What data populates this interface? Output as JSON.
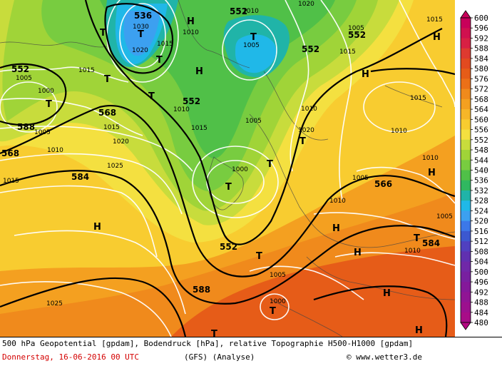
{
  "caption": {
    "line1": "500 hPa Geopotential [gpdam], Bodendruck [hPa], relative Topographie H500-H1000 [gpdam]",
    "date": "Donnerstag, 16-06-2016  00 UTC",
    "model": "(GFS)  (Analyse)",
    "credit": "© www.wetter3.de"
  },
  "legend": {
    "levels": [
      "600",
      "596",
      "592",
      "588",
      "584",
      "580",
      "576",
      "572",
      "568",
      "564",
      "560",
      "556",
      "552",
      "548",
      "544",
      "540",
      "536",
      "532",
      "528",
      "524",
      "520",
      "516",
      "512",
      "508",
      "504",
      "500",
      "496",
      "492",
      "488",
      "484",
      "480"
    ],
    "colors": [
      "#c8005a",
      "#d0104f",
      "#d82044",
      "#de3a30",
      "#e24a20",
      "#e65c18",
      "#ec7018",
      "#f08a1c",
      "#f4a020",
      "#f6b628",
      "#f8cc30",
      "#f4e040",
      "#c8dc3c",
      "#a0d438",
      "#78cc40",
      "#50c048",
      "#30b860",
      "#20b4a8",
      "#20b8e8",
      "#3ca0f0",
      "#3c78e8",
      "#3c58d0",
      "#5040c0",
      "#6030b0",
      "#7028a8",
      "#7820a0",
      "#84189a",
      "#901494",
      "#9c108e",
      "#a80c88",
      "#b40882"
    ]
  },
  "labels": {
    "geopotential": [
      {
        "t": "536"
      },
      {
        "t": "552"
      },
      {
        "t": "552"
      },
      {
        "t": "552"
      },
      {
        "t": "552"
      },
      {
        "t": "552"
      },
      {
        "t": "568"
      },
      {
        "t": "568"
      },
      {
        "t": "584"
      },
      {
        "t": "588"
      },
      {
        "t": "566"
      },
      {
        "t": "584"
      },
      {
        "t": "552"
      },
      {
        "t": "588"
      }
    ],
    "pressure": [
      "1005",
      "1010",
      "1015",
      "1020",
      "1025",
      "1030",
      "1000",
      "1005",
      "1015",
      "1010",
      "1020",
      "1015",
      "1010",
      "1005",
      "1015",
      "1000",
      "1005",
      "1010",
      "1020",
      "1010",
      "1015",
      "1010",
      "1015",
      "1005",
      "1010",
      "1005",
      "1010",
      "1010",
      "1005",
      "1000",
      "1025",
      "1005",
      "1015",
      "1020",
      "1015"
    ],
    "highs": [
      "H",
      "H",
      "H",
      "H",
      "H",
      "H",
      "H",
      "H",
      "H",
      "H"
    ],
    "lows": [
      "T",
      "T",
      "T",
      "T",
      "T",
      "T",
      "T",
      "T",
      "T",
      "T",
      "T",
      "T",
      "T",
      "T"
    ]
  }
}
